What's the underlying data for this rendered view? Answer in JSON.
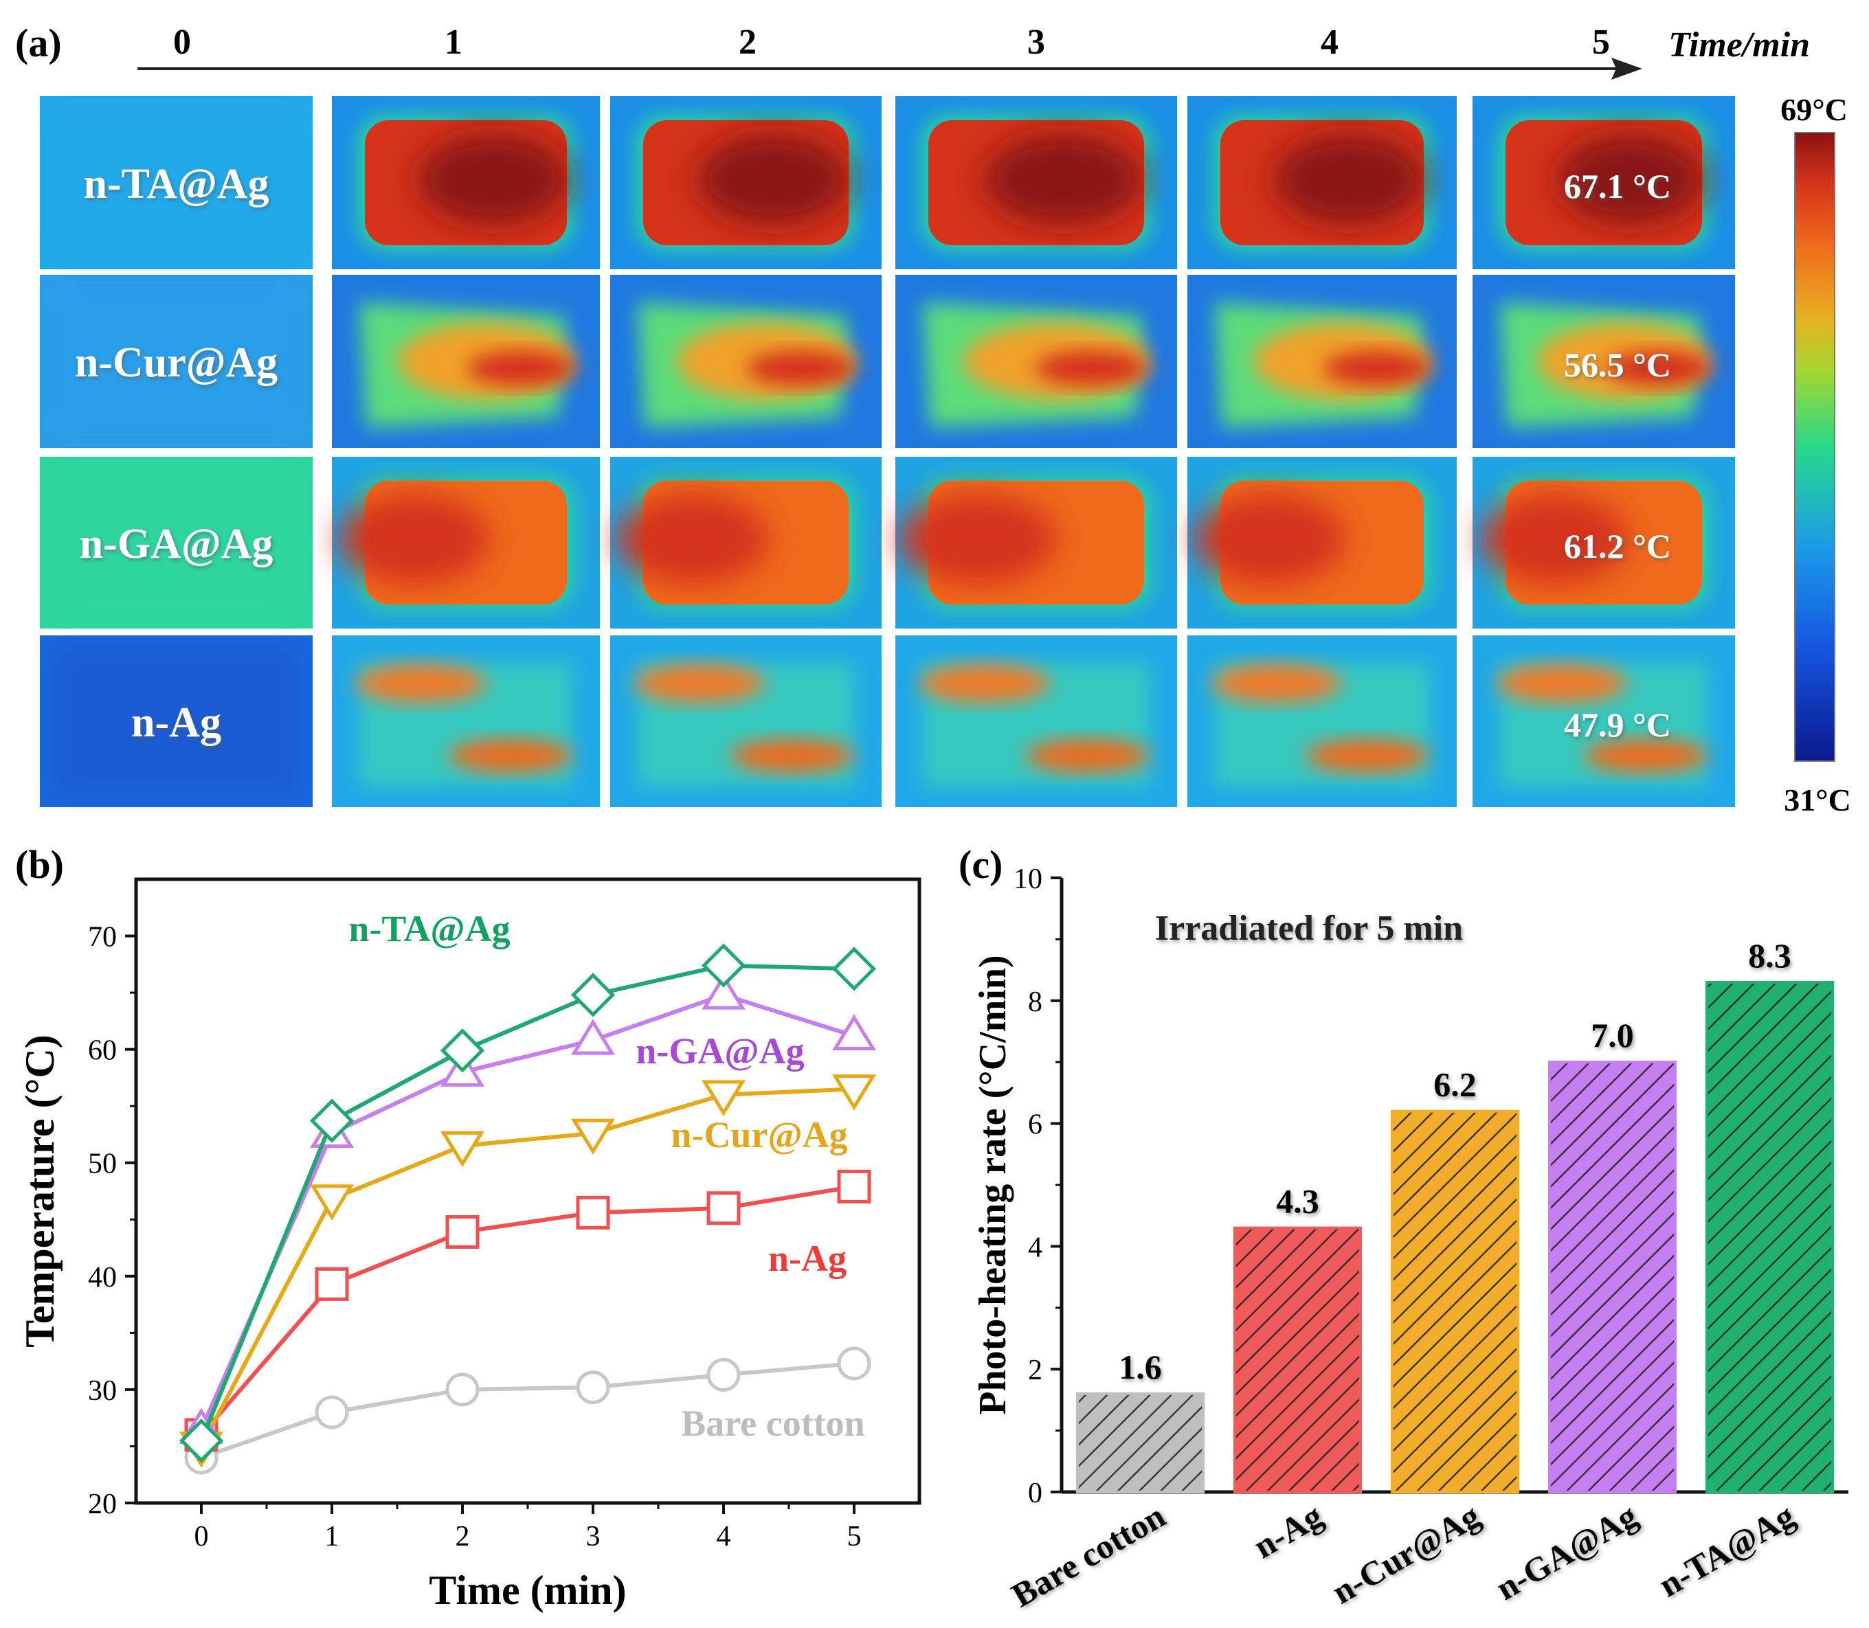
{
  "panel_a": {
    "label": "(a)",
    "time_axis_label": "Time/min",
    "time_ticks": [
      "0",
      "1",
      "2",
      "3",
      "4",
      "5"
    ],
    "rows": [
      {
        "sample": "n-TA@Ag",
        "final_temp": "67.1 °C",
        "peak": 0.95,
        "pattern": "uniform"
      },
      {
        "sample": "n-Cur@Ag",
        "final_temp": "56.5 °C",
        "peak": 0.72,
        "pattern": "streak"
      },
      {
        "sample": "n-GA@Ag",
        "final_temp": "61.2 °C",
        "peak": 0.88,
        "pattern": "uniform"
      },
      {
        "sample": "n-Ag",
        "final_temp": "47.9 °C",
        "peak": 0.62,
        "pattern": "patches"
      }
    ],
    "colorbar": {
      "max_label": "69°C",
      "min_label": "31°C"
    }
  },
  "chart_data": [
    {
      "panel": "(b)",
      "type": "line",
      "title": "",
      "xlabel": "Time (min)",
      "ylabel": "Temperature (°C)",
      "x": [
        0,
        1,
        2,
        3,
        4,
        5
      ],
      "xlim": [
        -0.5,
        5.5
      ],
      "ylim": [
        20,
        75
      ],
      "xticks": [
        0,
        1,
        2,
        3,
        4,
        5
      ],
      "yticks": [
        20,
        30,
        40,
        50,
        60,
        70
      ],
      "series": [
        {
          "name": "Bare cotton",
          "color": "#c8c8c8",
          "marker": "circle",
          "values": [
            24.0,
            28.0,
            30.0,
            30.2,
            31.3,
            32.3
          ],
          "label_color": "#bdbdbd"
        },
        {
          "name": "n-Ag",
          "color": "#f05050",
          "marker": "square",
          "values": [
            26.0,
            39.3,
            43.9,
            45.6,
            46.0,
            47.9
          ],
          "label_color": "#f03a3a"
        },
        {
          "name": "n-Cur@Ag",
          "color": "#e6a817",
          "marker": "triangle-down",
          "values": [
            25.0,
            46.8,
            51.5,
            52.6,
            56.0,
            56.5
          ],
          "label_color": "#e3a51b"
        },
        {
          "name": "n-GA@Ag",
          "color": "#c77ff0",
          "marker": "triangle-up",
          "values": [
            26.5,
            52.6,
            58.0,
            60.8,
            64.8,
            61.2
          ],
          "label_color": "#a64ad6"
        },
        {
          "name": "n-TA@Ag",
          "color": "#1fa871",
          "marker": "diamond",
          "values": [
            25.5,
            53.7,
            59.9,
            64.8,
            67.4,
            67.1
          ],
          "label_color": "#14a061"
        }
      ]
    },
    {
      "panel": "(c)",
      "type": "bar",
      "title": "",
      "annotation": "Irradiated for 5 min",
      "xlabel": "",
      "ylabel": "Photo-heating rate (°C/min)",
      "categories": [
        "Bare cotton",
        "n-Ag",
        "n-Cur@Ag",
        "n-GA@Ag",
        "n-TA@Ag"
      ],
      "values": [
        1.6,
        4.3,
        6.2,
        7.0,
        8.3
      ],
      "value_labels": [
        "1.6",
        "4.3",
        "6.2",
        "7.0",
        "8.3"
      ],
      "colors": [
        "#bfbfbf",
        "#f05a5a",
        "#f2ad2a",
        "#c57ff0",
        "#22b070"
      ],
      "ylim": [
        0,
        10
      ],
      "yticks": [
        0,
        2,
        4,
        6,
        8,
        10
      ],
      "hatch": "diagonal"
    }
  ]
}
